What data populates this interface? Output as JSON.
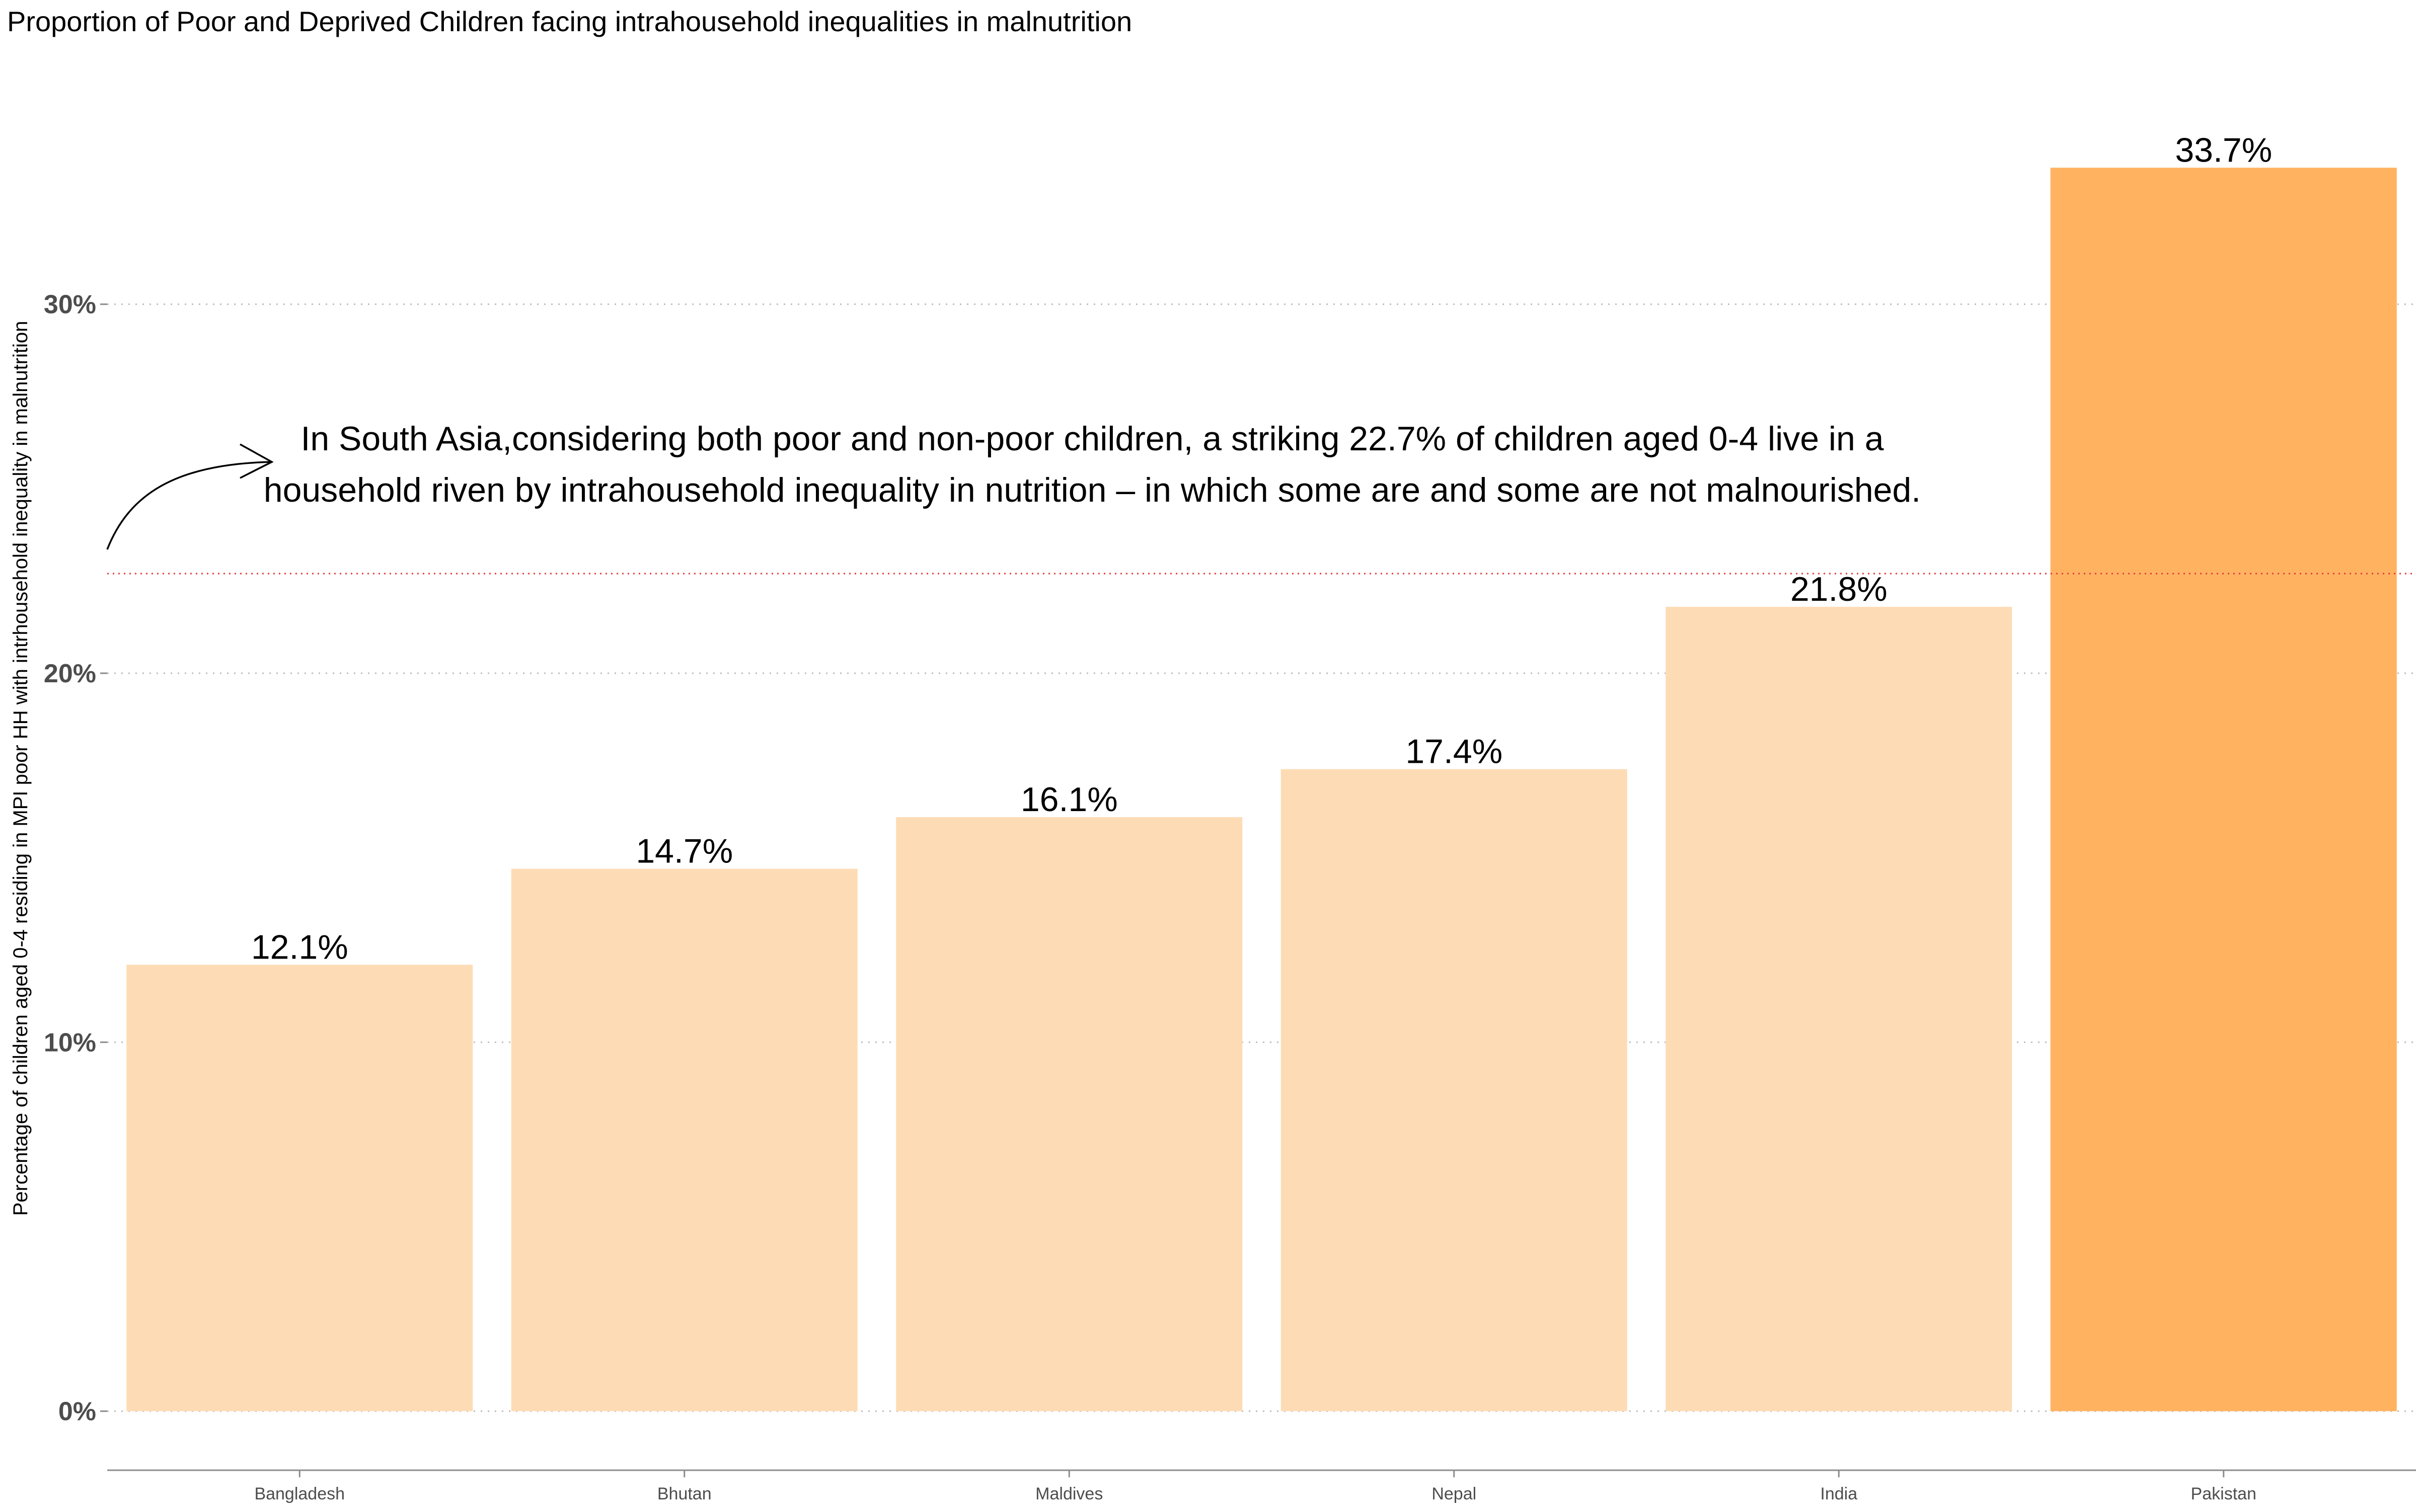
{
  "chart_data": {
    "type": "bar",
    "title": "Proportion of Poor and Deprived Children facing intrahousehold inequalities in malnutrition",
    "xlabel": "",
    "ylabel": "Percentage of children aged 0-4 residing in MPI poor HH with intrhousehold inequality in malnutrition",
    "categories": [
      "Bangladesh",
      "Bhutan",
      "Maldives",
      "Nepal",
      "India",
      "Pakistan"
    ],
    "values": [
      12.1,
      14.7,
      16.1,
      17.4,
      21.8,
      33.7
    ],
    "value_labels": [
      "12.1%",
      "14.7%",
      "16.1%",
      "17.4%",
      "21.8%",
      "33.7%"
    ],
    "bar_colors": [
      "#FDDCB5",
      "#FDDCB5",
      "#FDDCB5",
      "#FDDCB5",
      "#FDDCB5",
      "#FFB361"
    ],
    "yticks": [
      0,
      10,
      20,
      30
    ],
    "ytick_labels": [
      "0%",
      "10%",
      "20%",
      "30%"
    ],
    "ylim": [
      -1.6,
      36.2
    ],
    "grid": "horizontal dotted",
    "reference_line": {
      "value": 22.7,
      "color": "#E8393C",
      "style": "dotted"
    },
    "annotation": {
      "lines": [
        "In South Asia,considering both poor and non-poor children, a striking 22.7% of children aged 0-4 live in a",
        "household riven by intrahousehold inequality in nutrition – in which some are and some are not malnourished."
      ]
    },
    "colors": {
      "grid": "#BDBDBD",
      "axis": "#8C8C8C",
      "tick_text": "#4D4D4D",
      "text": "#000000"
    }
  }
}
